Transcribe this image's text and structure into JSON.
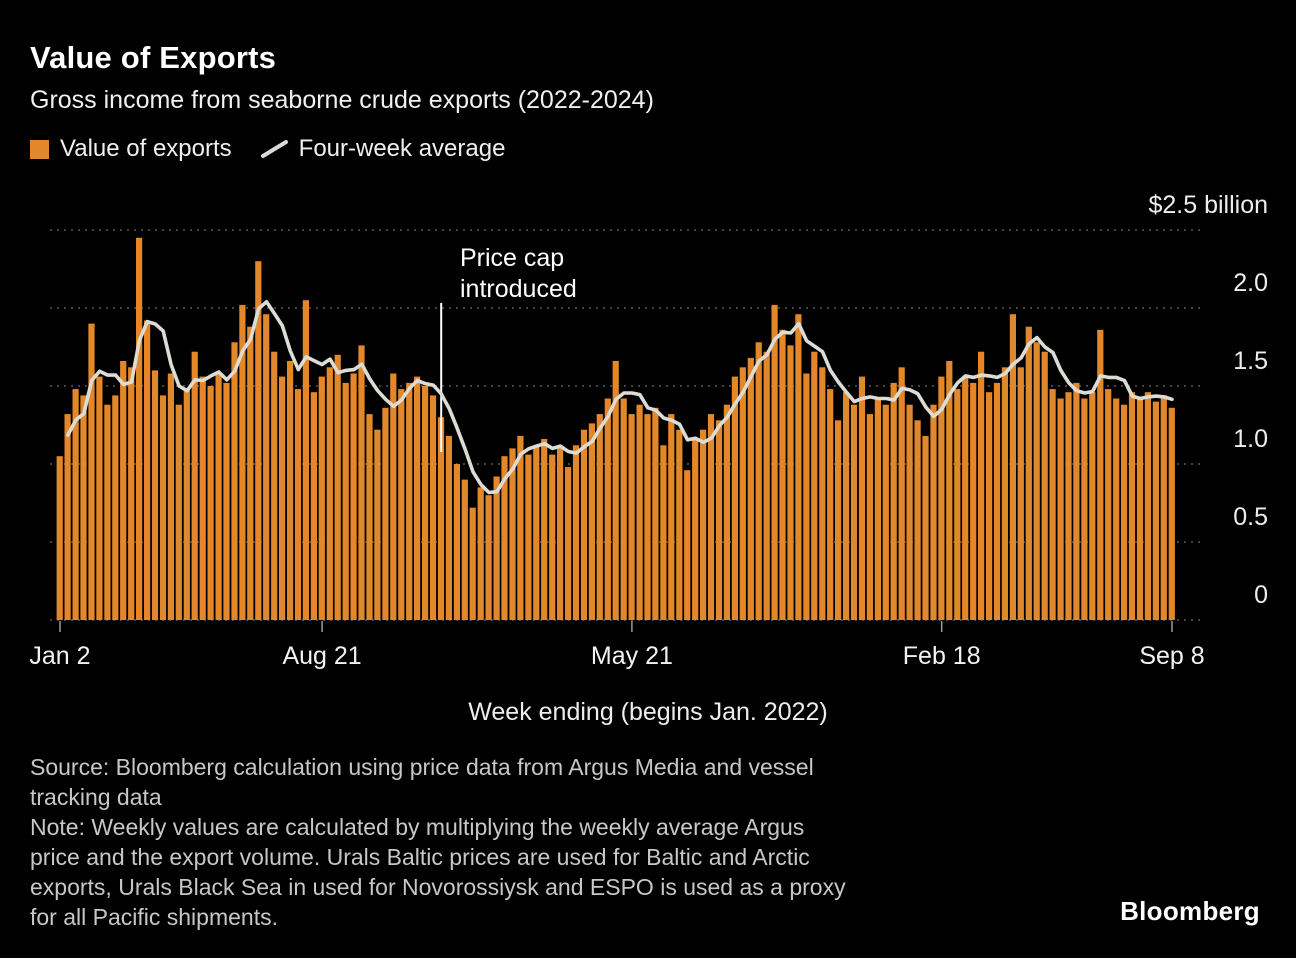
{
  "header": {
    "title": "Value of Exports",
    "subtitle": "Gross income from seaborne crude exports (2022-2024)"
  },
  "legend": {
    "bars": "Value of exports",
    "line": "Four-week average"
  },
  "chart_data": {
    "type": "bar",
    "overlay": "line",
    "title": "Value of Exports",
    "bar_series_name": "Value of exports",
    "line_series_name": "Four-week average",
    "line_definition": "trailing four-week average of the weekly bar values",
    "xlabel": "Week ending (begins Jan. 2022)",
    "ylim": [
      0,
      2.5
    ],
    "values_billion_usd": [
      1.05,
      1.32,
      1.48,
      1.44,
      1.9,
      1.56,
      1.38,
      1.44,
      1.66,
      1.62,
      2.45,
      1.92,
      1.6,
      1.44,
      1.58,
      1.38,
      1.48,
      1.72,
      1.56,
      1.5,
      1.58,
      1.52,
      1.78,
      2.02,
      1.88,
      2.3,
      1.96,
      1.72,
      1.56,
      1.66,
      1.48,
      2.05,
      1.46,
      1.56,
      1.62,
      1.7,
      1.52,
      1.58,
      1.76,
      1.32,
      1.22,
      1.36,
      1.58,
      1.48,
      1.52,
      1.56,
      1.5,
      1.44,
      1.3,
      1.18,
      1.0,
      0.9,
      0.72,
      0.85,
      0.8,
      0.92,
      1.05,
      1.1,
      1.18,
      1.06,
      1.12,
      1.16,
      1.06,
      1.12,
      0.98,
      1.12,
      1.22,
      1.26,
      1.32,
      1.42,
      1.66,
      1.42,
      1.32,
      1.38,
      1.32,
      1.36,
      1.12,
      1.32,
      1.22,
      0.96,
      1.16,
      1.22,
      1.32,
      1.28,
      1.38,
      1.56,
      1.62,
      1.68,
      1.78,
      1.72,
      2.02,
      1.86,
      1.76,
      1.96,
      1.58,
      1.72,
      1.62,
      1.48,
      1.28,
      1.46,
      1.38,
      1.56,
      1.32,
      1.42,
      1.38,
      1.52,
      1.62,
      1.38,
      1.28,
      1.18,
      1.38,
      1.56,
      1.66,
      1.48,
      1.56,
      1.52,
      1.72,
      1.46,
      1.52,
      1.62,
      1.96,
      1.62,
      1.88,
      1.78,
      1.72,
      1.48,
      1.42,
      1.46,
      1.52,
      1.42,
      1.46,
      1.86,
      1.48,
      1.42,
      1.38,
      1.46,
      1.42,
      1.46,
      1.4,
      1.44,
      1.36
    ],
    "x_ticks": [
      {
        "week": 0,
        "label": "Jan 2"
      },
      {
        "week": 33,
        "label": "Aug 21"
      },
      {
        "week": 72,
        "label": "May 21"
      },
      {
        "week": 111,
        "label": "Feb 18"
      },
      {
        "week": 140,
        "label": "Sep 8"
      }
    ],
    "y_ticks": [
      {
        "value": 2.5,
        "label": "$2.5 billion"
      },
      {
        "value": 2.0,
        "label": "2.0"
      },
      {
        "value": 1.5,
        "label": "1.5"
      },
      {
        "value": 1.0,
        "label": "1.0"
      },
      {
        "value": 0.5,
        "label": "0.5"
      },
      {
        "value": 0,
        "label": "0"
      }
    ],
    "annotation": {
      "line1": "Price cap",
      "line2": "introduced",
      "week": 48
    },
    "colors": {
      "bar": "#E2882B",
      "line": "#DCDCD4",
      "grid": "#5A5A5A",
      "background": "#000000",
      "annotation": "#FFFFFF"
    }
  },
  "footer": {
    "source_lines": [
      "Source: Bloomberg calculation using price data from Argus Media and vessel",
      "tracking data"
    ],
    "note_lines": [
      "Note: Weekly values are calculated by multiplying the weekly average Argus",
      "price and the export volume. Urals Baltic prices are used for Baltic and Arctic",
      "exports, Urals Black Sea in used for Novorossiysk and ESPO is used as a proxy",
      "for all Pacific shipments."
    ],
    "brand": "Bloomberg"
  }
}
